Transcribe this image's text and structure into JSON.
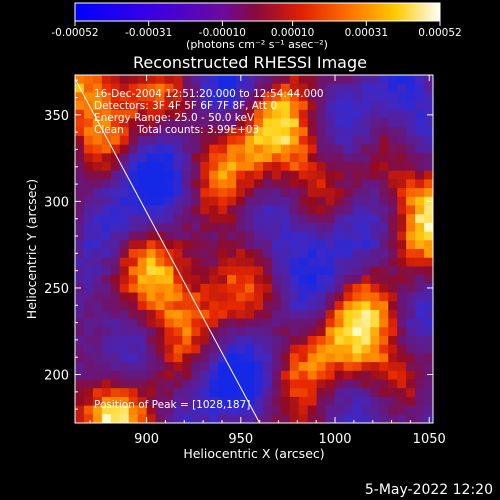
{
  "colorbar": {
    "tick_labels": [
      "-0.00052",
      "-0.00031",
      "-0.00010",
      "0.00010",
      "0.00031",
      "0.00052"
    ],
    "tick_values": [
      -0.00052,
      -0.00031,
      -0.0001,
      0.0001,
      0.00031,
      0.00052
    ],
    "range": [
      -0.00052,
      0.00052
    ],
    "units_label": "(photons cm⁻² s⁻¹ asec⁻²)",
    "colors": [
      "#0000ff",
      "#5a00c8",
      "#8c0a3c",
      "#ff4000",
      "#ffcc00",
      "#ffffff"
    ]
  },
  "chart_data": {
    "type": "heatmap",
    "title": "Reconstructed RHESSI Image",
    "xlabel": "Heliocentric X (arcsec)",
    "ylabel": "Heliocentric Y (arcsec)",
    "xlim": [
      862,
      1052
    ],
    "ylim": [
      172,
      373
    ],
    "xticks": [
      900,
      950,
      1000,
      1050
    ],
    "yticks": [
      200,
      250,
      300,
      350
    ],
    "grid": false,
    "annotations": [
      "16-Dec-2004 12:51:20.000 to 12:54:44.000",
      "Detectors: 3F 4F 5F 6F 7F 8F, Att 0",
      "Energy Range: 25.0 - 50.0 keV",
      "Clean    Total counts: 3.99E+03"
    ],
    "peak_label": "Position of Peak = [1028,187]",
    "peak_position": [
      1028,
      187
    ],
    "limb_line": {
      "x": [
        855,
        960
      ],
      "y": [
        385,
        172
      ]
    },
    "heatmap_description_values": {
      "min": -0.00052,
      "max": 0.00052
    }
  },
  "footer": {
    "timestamp": "5-May-2022 12:20"
  }
}
